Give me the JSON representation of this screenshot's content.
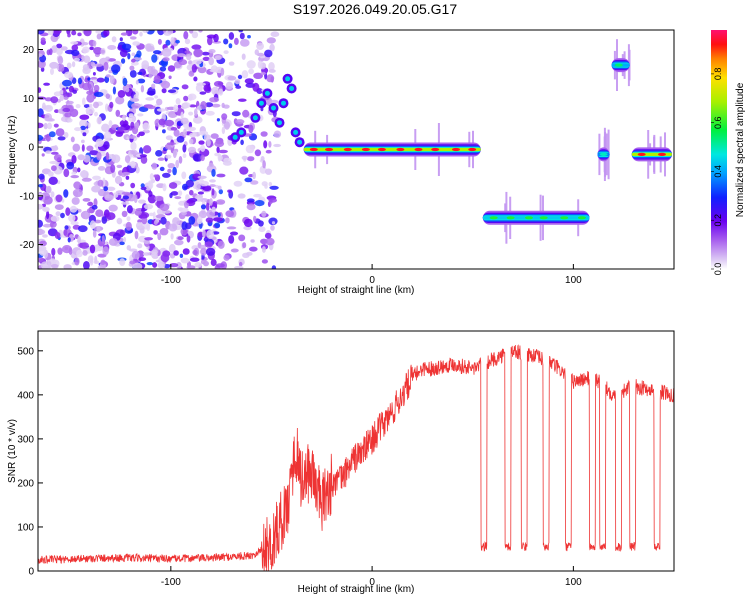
{
  "title": "S197.2026.049.20.05.G17",
  "chart_data": [
    {
      "type": "heatmap",
      "xlabel": "Height of straight line (km)",
      "ylabel": "Frequency (Hz)",
      "xlim": [
        -166,
        150
      ],
      "ylim": [
        -25,
        24
      ],
      "x_ticks": [
        -100,
        0,
        100
      ],
      "y_ticks": [
        -20,
        -10,
        0,
        10,
        20
      ],
      "colorbar": {
        "label": "Normalized spectral amplitude",
        "range": [
          0,
          0.98
        ],
        "ticks": [
          0.0,
          0.2,
          0.4,
          0.6,
          0.8
        ],
        "tick_labels": [
          "0.0",
          "0.2",
          "0.4",
          "0.6",
          "0.8"
        ]
      },
      "ridge_segments": [
        {
          "x_start": -34,
          "x_end": 54,
          "freq": -0.5,
          "peak_amplitude": 0.95
        },
        {
          "x_start": 55,
          "x_end": 108,
          "freq": -14.5,
          "peak_amplitude": 0.6
        },
        {
          "x_start": 112,
          "x_end": 118,
          "freq": -1.5,
          "peak_amplitude": 0.5
        },
        {
          "x_start": 119,
          "x_end": 128,
          "freq": 16.8,
          "peak_amplitude": 0.55
        },
        {
          "x_start": 129,
          "x_end": 149,
          "freq": -1.5,
          "peak_amplitude": 0.95
        }
      ],
      "noise_region": {
        "x_start": -166,
        "x_end": -55
      }
    },
    {
      "type": "line",
      "xlabel": "Height of straight line (km)",
      "ylabel": "SNR (10 * v/v)",
      "xlim": [
        -166,
        150
      ],
      "ylim": [
        0,
        545
      ],
      "x_ticks": [
        -100,
        0,
        100
      ],
      "y_ticks": [
        0,
        100,
        200,
        300,
        400,
        500
      ],
      "color": "#ee3333",
      "series_keypoints": {
        "x": [
          -166,
          -130,
          -100,
          -80,
          -60,
          -50,
          -42,
          -38,
          -35,
          -30,
          -25,
          -20,
          -15,
          -10,
          -5,
          0,
          5,
          10,
          15,
          20,
          25,
          30,
          40,
          50,
          60,
          70,
          80,
          90,
          100,
          110,
          120,
          130,
          140,
          150
        ],
        "y": [
          25,
          30,
          28,
          30,
          35,
          60,
          150,
          280,
          200,
          230,
          150,
          200,
          210,
          250,
          270,
          300,
          330,
          360,
          400,
          440,
          460,
          460,
          470,
          460,
          480,
          500,
          490,
          470,
          430,
          440,
          400,
          420,
          410,
          400
        ]
      },
      "dropouts": [
        {
          "x_start": 54,
          "x_end": 57,
          "y": 55
        },
        {
          "x_start": 66,
          "x_end": 69,
          "y": 55
        },
        {
          "x_start": 74,
          "x_end": 77,
          "y": 55
        },
        {
          "x_start": 85,
          "x_end": 88,
          "y": 55
        },
        {
          "x_start": 96,
          "x_end": 99,
          "y": 55
        },
        {
          "x_start": 108,
          "x_end": 111,
          "y": 55
        },
        {
          "x_start": 113,
          "x_end": 116,
          "y": 55
        },
        {
          "x_start": 121,
          "x_end": 124,
          "y": 55
        },
        {
          "x_start": 128,
          "x_end": 131,
          "y": 55
        },
        {
          "x_start": 140,
          "x_end": 143,
          "y": 55
        }
      ]
    }
  ]
}
